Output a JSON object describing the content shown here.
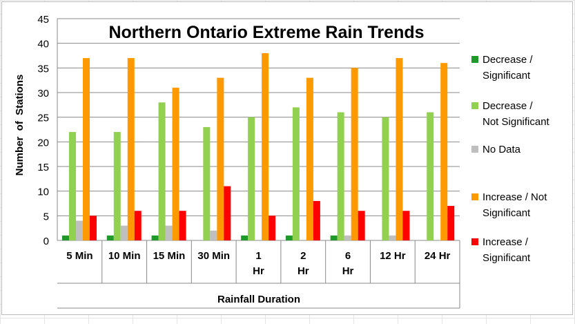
{
  "chart_data": {
    "type": "bar",
    "title": "Northern Ontario Extreme Rain Trends",
    "xlabel": "Rainfall Duration",
    "ylabel": "Number  of  Stations",
    "ylim": [
      0,
      45
    ],
    "yticks": [
      0,
      5,
      10,
      15,
      20,
      25,
      30,
      35,
      40,
      45
    ],
    "grid": true,
    "legend_position": "right",
    "categories": [
      [
        "5 Min"
      ],
      [
        "10 Min"
      ],
      [
        "15 Min"
      ],
      [
        "30 Min"
      ],
      [
        "1",
        "Hr"
      ],
      [
        "2",
        "Hr"
      ],
      [
        "6",
        "Hr"
      ],
      [
        "12 Hr"
      ],
      [
        "24 Hr"
      ]
    ],
    "series": [
      {
        "name": [
          "Decrease /",
          "Significant"
        ],
        "color": "#1e9a2a",
        "values": [
          1,
          1,
          1,
          0,
          1,
          1,
          1,
          0,
          0
        ]
      },
      {
        "name": [
          "Decrease /",
          "Not Significant"
        ],
        "color": "#92d050",
        "values": [
          22,
          22,
          28,
          23,
          25,
          27,
          26,
          25,
          26
        ]
      },
      {
        "name": [
          "No Data"
        ],
        "color": "#bfbfbf",
        "values": [
          4,
          3,
          3,
          2,
          0,
          0,
          1,
          1,
          0
        ]
      },
      {
        "name": [
          "Increase / Not",
          "Significant"
        ],
        "color": "#ff9900",
        "values": [
          37,
          37,
          31,
          33,
          38,
          33,
          35,
          37,
          36
        ]
      },
      {
        "name": [
          "Increase /",
          "Significant"
        ],
        "color": "#ff0000",
        "values": [
          5,
          6,
          6,
          11,
          5,
          8,
          6,
          6,
          7
        ]
      }
    ]
  }
}
